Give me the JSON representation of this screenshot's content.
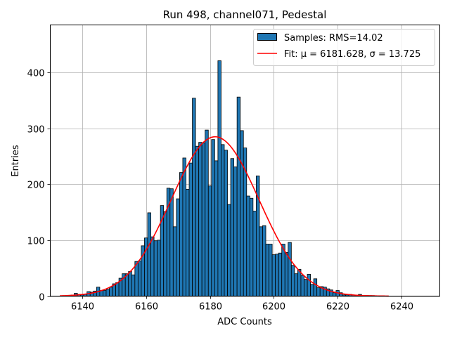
{
  "chart_data": {
    "type": "bar",
    "title": "Run 498, channel071, Pedestal",
    "xlabel": "ADC Counts",
    "ylabel": "Entries",
    "xlim": [
      6130,
      6252
    ],
    "ylim": [
      0,
      485
    ],
    "xticks": [
      6140,
      6160,
      6180,
      6200,
      6220,
      6240
    ],
    "yticks": [
      0,
      100,
      200,
      300,
      400
    ],
    "grid": true,
    "legend_position": "top-right",
    "bar_color": "#1f77b4",
    "fit_color": "#ff0000",
    "series": [
      {
        "name": "Samples: RMS=14.02",
        "kind": "histogram",
        "bin_width": 1,
        "bins": [
          {
            "x": 6136,
            "y": 1
          },
          {
            "x": 6137,
            "y": 2
          },
          {
            "x": 6138,
            "y": 5
          },
          {
            "x": 6139,
            "y": 3
          },
          {
            "x": 6140,
            "y": 2
          },
          {
            "x": 6141,
            "y": 3
          },
          {
            "x": 6142,
            "y": 8
          },
          {
            "x": 6143,
            "y": 7
          },
          {
            "x": 6144,
            "y": 9
          },
          {
            "x": 6145,
            "y": 16
          },
          {
            "x": 6146,
            "y": 10
          },
          {
            "x": 6147,
            "y": 10
          },
          {
            "x": 6148,
            "y": 12
          },
          {
            "x": 6149,
            "y": 16
          },
          {
            "x": 6150,
            "y": 22
          },
          {
            "x": 6151,
            "y": 24
          },
          {
            "x": 6152,
            "y": 32
          },
          {
            "x": 6153,
            "y": 40
          },
          {
            "x": 6154,
            "y": 40
          },
          {
            "x": 6155,
            "y": 44
          },
          {
            "x": 6156,
            "y": 38
          },
          {
            "x": 6157,
            "y": 62
          },
          {
            "x": 6158,
            "y": 63
          },
          {
            "x": 6159,
            "y": 90
          },
          {
            "x": 6160,
            "y": 104
          },
          {
            "x": 6161,
            "y": 149
          },
          {
            "x": 6162,
            "y": 106
          },
          {
            "x": 6163,
            "y": 99
          },
          {
            "x": 6164,
            "y": 100
          },
          {
            "x": 6165,
            "y": 162
          },
          {
            "x": 6166,
            "y": 151
          },
          {
            "x": 6167,
            "y": 193
          },
          {
            "x": 6168,
            "y": 192
          },
          {
            "x": 6169,
            "y": 124
          },
          {
            "x": 6170,
            "y": 174
          },
          {
            "x": 6171,
            "y": 221
          },
          {
            "x": 6172,
            "y": 247
          },
          {
            "x": 6173,
            "y": 191
          },
          {
            "x": 6174,
            "y": 238
          },
          {
            "x": 6175,
            "y": 354
          },
          {
            "x": 6176,
            "y": 268
          },
          {
            "x": 6177,
            "y": 275
          },
          {
            "x": 6178,
            "y": 274
          },
          {
            "x": 6179,
            "y": 297
          },
          {
            "x": 6180,
            "y": 197
          },
          {
            "x": 6181,
            "y": 280
          },
          {
            "x": 6182,
            "y": 242
          },
          {
            "x": 6183,
            "y": 421
          },
          {
            "x": 6184,
            "y": 271
          },
          {
            "x": 6185,
            "y": 261
          },
          {
            "x": 6186,
            "y": 164
          },
          {
            "x": 6187,
            "y": 246
          },
          {
            "x": 6188,
            "y": 231
          },
          {
            "x": 6189,
            "y": 356
          },
          {
            "x": 6190,
            "y": 296
          },
          {
            "x": 6191,
            "y": 265
          },
          {
            "x": 6192,
            "y": 179
          },
          {
            "x": 6193,
            "y": 175
          },
          {
            "x": 6194,
            "y": 152
          },
          {
            "x": 6195,
            "y": 215
          },
          {
            "x": 6196,
            "y": 124
          },
          {
            "x": 6197,
            "y": 126
          },
          {
            "x": 6198,
            "y": 93
          },
          {
            "x": 6199,
            "y": 93
          },
          {
            "x": 6200,
            "y": 74
          },
          {
            "x": 6201,
            "y": 75
          },
          {
            "x": 6202,
            "y": 77
          },
          {
            "x": 6203,
            "y": 93
          },
          {
            "x": 6204,
            "y": 78
          },
          {
            "x": 6205,
            "y": 96
          },
          {
            "x": 6206,
            "y": 55
          },
          {
            "x": 6207,
            "y": 40
          },
          {
            "x": 6208,
            "y": 48
          },
          {
            "x": 6209,
            "y": 37
          },
          {
            "x": 6210,
            "y": 30
          },
          {
            "x": 6211,
            "y": 39
          },
          {
            "x": 6212,
            "y": 21
          },
          {
            "x": 6213,
            "y": 31
          },
          {
            "x": 6214,
            "y": 15
          },
          {
            "x": 6215,
            "y": 17
          },
          {
            "x": 6216,
            "y": 16
          },
          {
            "x": 6217,
            "y": 13
          },
          {
            "x": 6218,
            "y": 11
          },
          {
            "x": 6219,
            "y": 6
          },
          {
            "x": 6220,
            "y": 10
          },
          {
            "x": 6221,
            "y": 6
          },
          {
            "x": 6222,
            "y": 2
          },
          {
            "x": 6223,
            "y": 2
          },
          {
            "x": 6224,
            "y": 3
          },
          {
            "x": 6225,
            "y": 2
          },
          {
            "x": 6226,
            "y": 1
          },
          {
            "x": 6227,
            "y": 3
          },
          {
            "x": 6228,
            "y": 1
          },
          {
            "x": 6229,
            "y": 1
          },
          {
            "x": 6230,
            "y": 1
          },
          {
            "x": 6231,
            "y": 1
          }
        ]
      },
      {
        "name": "Fit: μ = 6181.628, σ = 13.725",
        "kind": "gaussian",
        "mu": 6181.628,
        "sigma": 13.725,
        "amplitude": 285,
        "x_range": [
          6133,
          6236
        ]
      }
    ]
  }
}
